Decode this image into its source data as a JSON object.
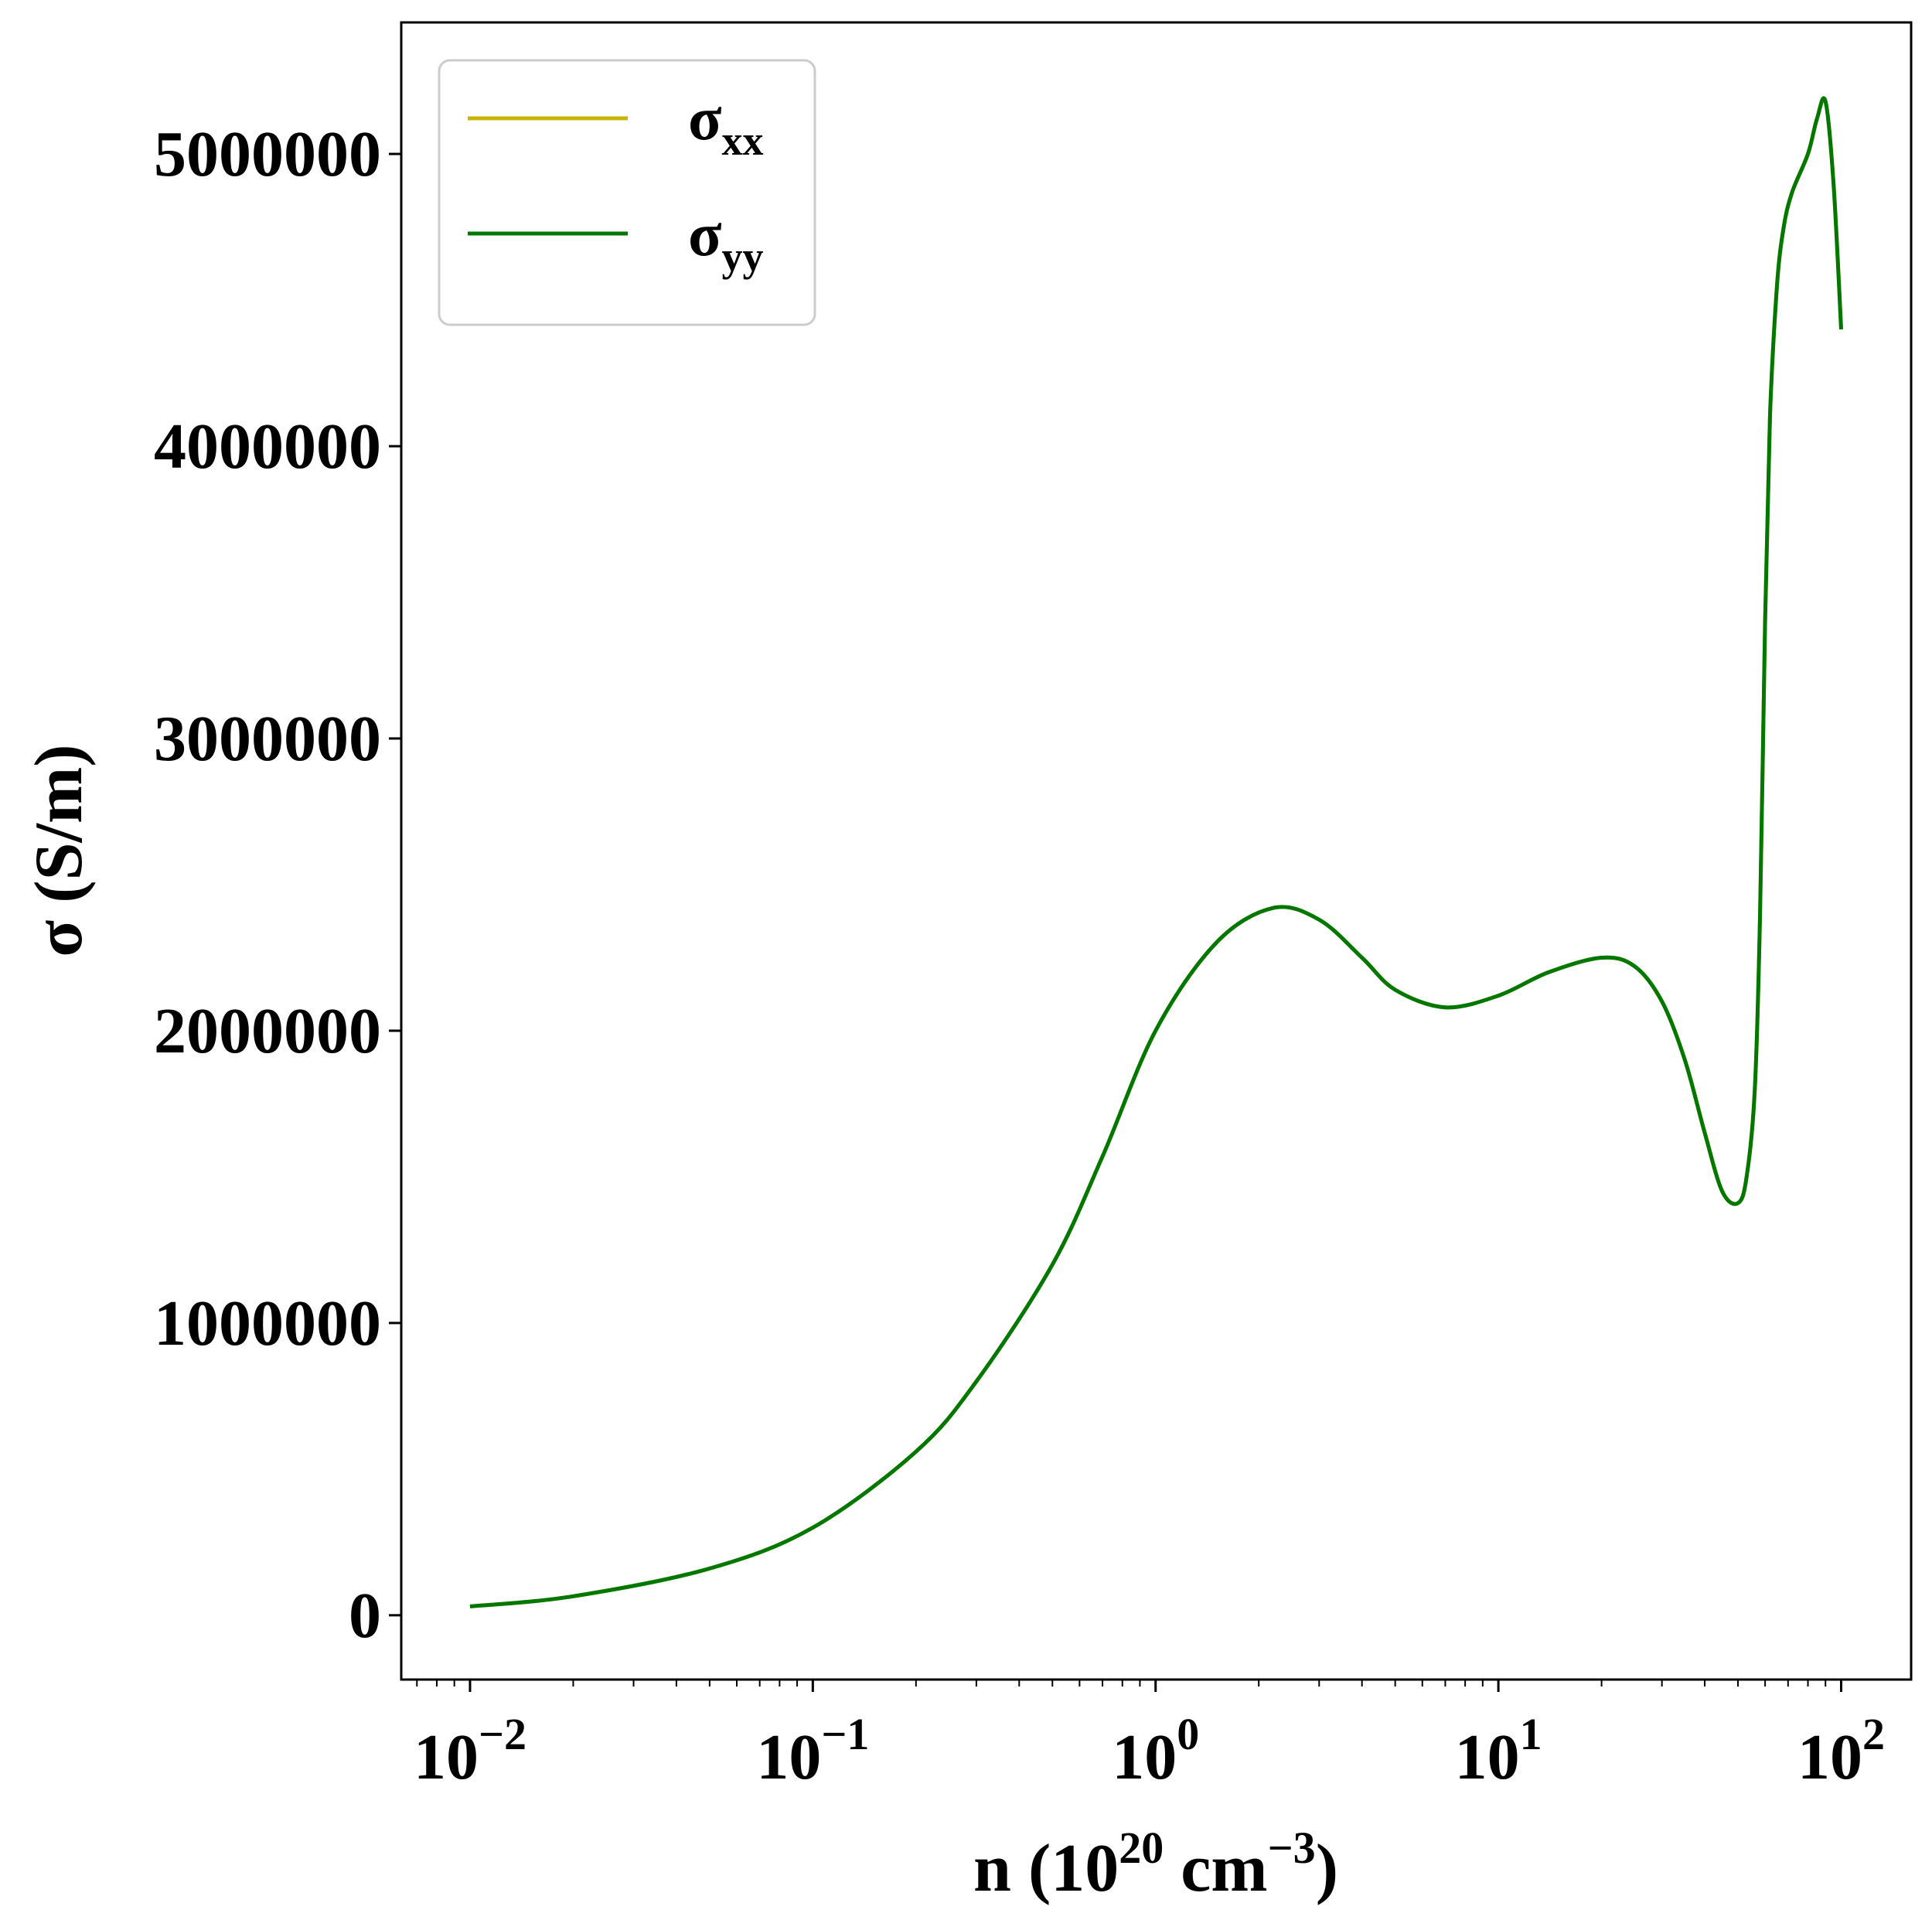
{
  "chart_data": {
    "type": "line",
    "xscale": "log",
    "xlim": [
      0.0063,
      160
    ],
    "ylim": [
      -220000,
      5450000
    ],
    "xticks": [
      {
        "base": "10",
        "exp": "−2",
        "value": 0.01
      },
      {
        "base": "10",
        "exp": "−1",
        "value": 0.1
      },
      {
        "base": "10",
        "exp": "0",
        "value": 1
      },
      {
        "base": "10",
        "exp": "1",
        "value": 10
      },
      {
        "base": "10",
        "exp": "2",
        "value": 100
      }
    ],
    "yticks": [
      {
        "label": "0",
        "value": 0
      },
      {
        "label": "1000000",
        "value": 1000000
      },
      {
        "label": "2000000",
        "value": 2000000
      },
      {
        "label": "3000000",
        "value": 3000000
      },
      {
        "label": "4000000",
        "value": 4000000
      },
      {
        "label": "5000000",
        "value": 5000000
      }
    ],
    "xlabel": {
      "prefix": "n (10",
      "sup1": "20",
      "middle": " cm",
      "sup2": "−3",
      "suffix": ")"
    },
    "ylabel": "σ (S/m)",
    "legend": {
      "placement": "top-left"
    },
    "series": [
      {
        "name_base": "σ",
        "name_sub": "xx",
        "color": "#c8b400",
        "x": [
          0.01,
          0.02,
          0.05,
          0.1,
          0.2,
          0.3,
          0.5,
          0.7,
          1.0,
          1.5,
          2.2,
          3.0,
          4.0,
          5.0,
          7.0,
          10,
          14,
          20,
          25,
          30,
          35,
          40,
          45,
          50,
          53,
          56,
          58,
          60,
          62,
          65,
          68,
          72,
          80,
          85,
          90,
          95,
          100
        ],
        "y": [
          30000,
          65000,
          160000,
          300000,
          560000,
          800000,
          1200000,
          1570000,
          2000000,
          2300000,
          2420000,
          2380000,
          2250000,
          2140000,
          2080000,
          2120000,
          2200000,
          2250000,
          2220000,
          2100000,
          1900000,
          1650000,
          1450000,
          1410000,
          1500000,
          1800000,
          2400000,
          3400000,
          4100000,
          4550000,
          4750000,
          4870000,
          5000000,
          5120000,
          5180000,
          4900000,
          4400000
        ]
      },
      {
        "name_base": "σ",
        "name_sub": "yy",
        "color": "#007800",
        "x": [
          0.01,
          0.02,
          0.05,
          0.1,
          0.2,
          0.3,
          0.5,
          0.7,
          1.0,
          1.5,
          2.2,
          3.0,
          4.0,
          5.0,
          7.0,
          10,
          14,
          20,
          25,
          30,
          35,
          40,
          45,
          50,
          53,
          56,
          58,
          60,
          62,
          65,
          68,
          72,
          80,
          85,
          90,
          95,
          100
        ],
        "y": [
          30000,
          65000,
          160000,
          300000,
          560000,
          800000,
          1200000,
          1570000,
          2000000,
          2300000,
          2420000,
          2380000,
          2250000,
          2140000,
          2080000,
          2120000,
          2200000,
          2250000,
          2220000,
          2100000,
          1900000,
          1650000,
          1450000,
          1410000,
          1500000,
          1800000,
          2400000,
          3400000,
          4100000,
          4550000,
          4750000,
          4870000,
          5000000,
          5120000,
          5180000,
          4900000,
          4400000
        ]
      }
    ]
  }
}
